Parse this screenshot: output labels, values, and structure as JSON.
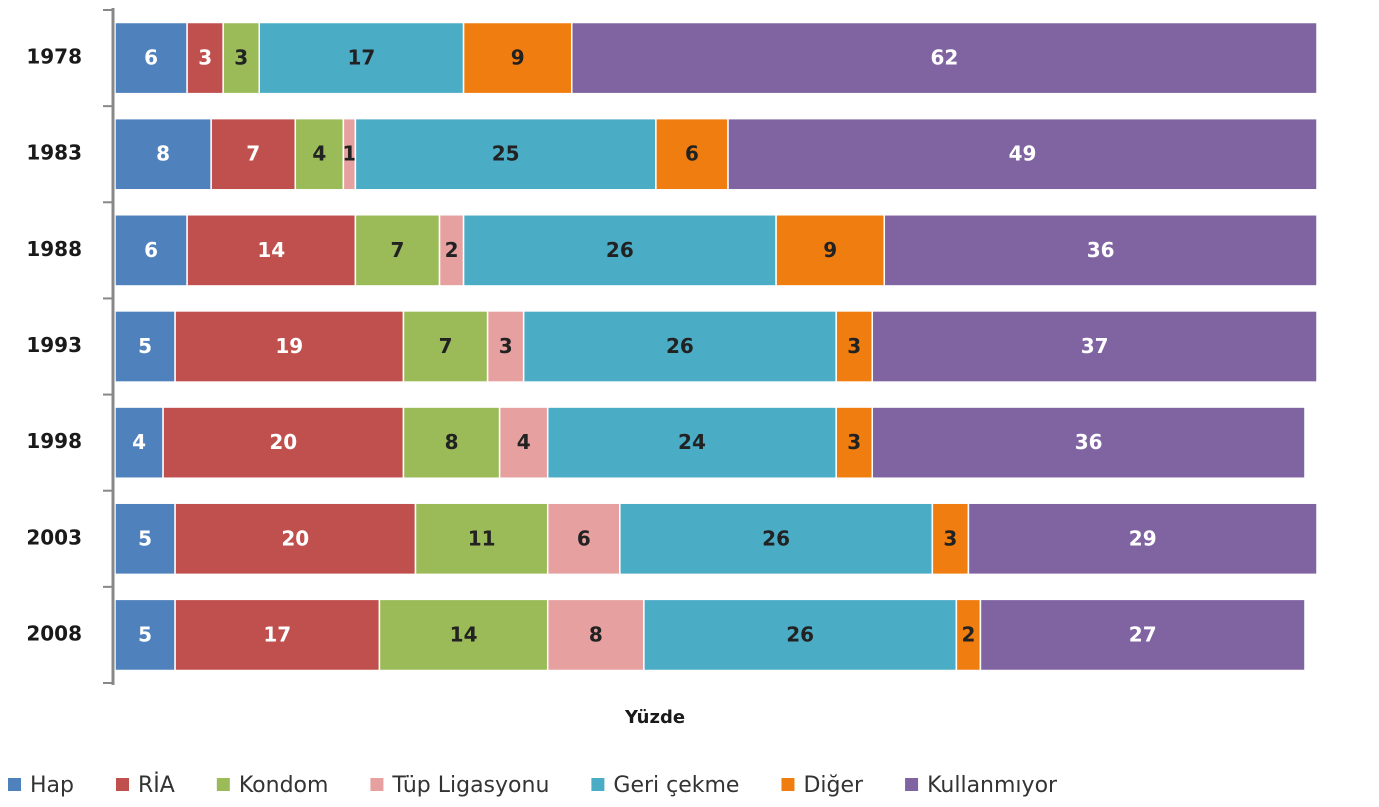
{
  "chart_data": {
    "type": "stacked_bar_horizontal",
    "x_label": "Yüzde",
    "categories": [
      "1978",
      "1983",
      "1988",
      "1993",
      "1998",
      "2003",
      "2008"
    ],
    "xlim": [
      0,
      100
    ],
    "series": [
      {
        "name": "Hap",
        "color": "#4f81bd",
        "values": [
          6,
          8,
          6,
          5,
          4,
          5,
          5
        ]
      },
      {
        "name": "RİA",
        "color": "#c0504d",
        "values": [
          3,
          7,
          14,
          19,
          20,
          20,
          17
        ]
      },
      {
        "name": "Kondom",
        "color": "#9bbb59",
        "values": [
          3,
          4,
          7,
          7,
          8,
          11,
          14
        ]
      },
      {
        "name": "Tüp Ligasyonu",
        "color": "#e6a0a0",
        "values": [
          0,
          1,
          2,
          3,
          4,
          6,
          8
        ]
      },
      {
        "name": "Geri çekme",
        "color": "#4bacc6",
        "values": [
          17,
          25,
          26,
          26,
          24,
          26,
          26
        ]
      },
      {
        "name": "Diğer",
        "color": "#f07d10",
        "values": [
          9,
          6,
          9,
          3,
          3,
          3,
          2
        ]
      },
      {
        "name": "Kullanmıyor",
        "color": "#8064a2",
        "values": [
          62,
          49,
          36,
          37,
          36,
          29,
          27
        ]
      }
    ]
  }
}
